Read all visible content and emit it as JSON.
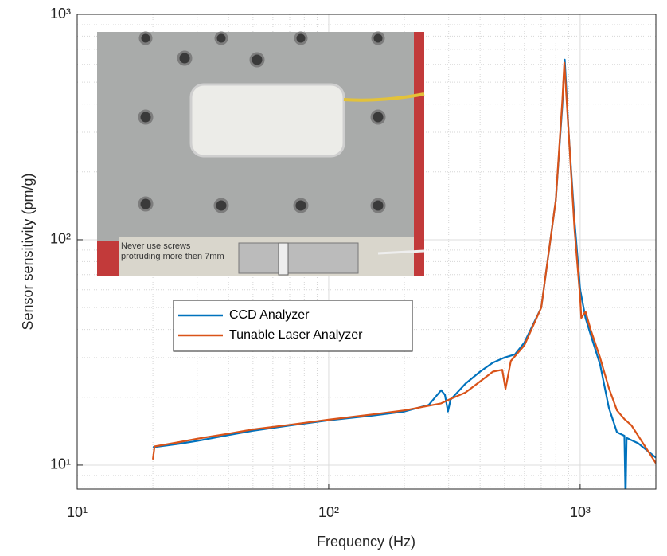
{
  "chart_data": {
    "type": "line",
    "x_label": "Frequency (Hz)",
    "y_label": "Sensor sensitivity (pm/g)",
    "xscale": "log",
    "yscale": "log",
    "xlim": [
      10,
      2000
    ],
    "ylim": [
      7.83,
      1000
    ],
    "xticks": [
      {
        "value": 10,
        "label": "10¹"
      },
      {
        "value": 100,
        "label": "10²"
      },
      {
        "value": 1000,
        "label": "10³"
      }
    ],
    "yticks": [
      {
        "value": 10,
        "label": "10¹"
      },
      {
        "value": 100,
        "label": "10²"
      },
      {
        "value": 1000,
        "label": "10³"
      }
    ],
    "xminorticks": [
      20,
      30,
      40,
      50,
      60,
      70,
      80,
      90,
      200,
      300,
      400,
      500,
      600,
      700,
      800,
      900
    ],
    "yminorticks": [
      8,
      9,
      20,
      30,
      40,
      50,
      60,
      70,
      80,
      90,
      200,
      300,
      400,
      500,
      600,
      700,
      800,
      900
    ],
    "grid": true,
    "legend_position": "center-left",
    "annotations": [
      "Never use screws",
      "protruding more then 7mm"
    ],
    "series": [
      {
        "name": "CCD Analyzer",
        "color": "#0072BD",
        "x": [
          20,
          25,
          30,
          40,
          50,
          70,
          100,
          150,
          200,
          250,
          280,
          290,
          298,
          305,
          350,
          400,
          450,
          500,
          550,
          600,
          700,
          800,
          850,
          868,
          900,
          950,
          1000,
          1050,
          1100,
          1200,
          1300,
          1400,
          1500,
          1515,
          1530,
          1700,
          2000
        ],
        "values": [
          12.0,
          12.4,
          12.8,
          13.6,
          14.2,
          15.0,
          15.8,
          16.6,
          17.3,
          18.5,
          21.5,
          20.5,
          17.3,
          19.5,
          23,
          26,
          28.5,
          30,
          31,
          35,
          50,
          150,
          400,
          630,
          300,
          120,
          60,
          45,
          38,
          28,
          18,
          14,
          13.5,
          7.0,
          13.2,
          12.5,
          10.8
        ]
      },
      {
        "name": "Tunable Laser Analyzer",
        "color": "#D95319",
        "x": [
          20,
          20.3,
          25,
          30,
          40,
          50,
          70,
          100,
          150,
          200,
          280,
          300,
          350,
          400,
          450,
          490,
          505,
          530,
          600,
          700,
          800,
          850,
          865,
          900,
          950,
          1000,
          1010,
          1050,
          1100,
          1200,
          1300,
          1400,
          1500,
          1600,
          2000
        ],
        "values": [
          10.6,
          12.1,
          12.6,
          13.1,
          13.8,
          14.4,
          15.1,
          15.9,
          16.8,
          17.5,
          18.8,
          19.5,
          21,
          23.5,
          26,
          26.5,
          21.8,
          29,
          34,
          50,
          150,
          420,
          610,
          300,
          110,
          55,
          45,
          48,
          40,
          30,
          22,
          17.5,
          16,
          15,
          10.2
        ]
      }
    ]
  }
}
